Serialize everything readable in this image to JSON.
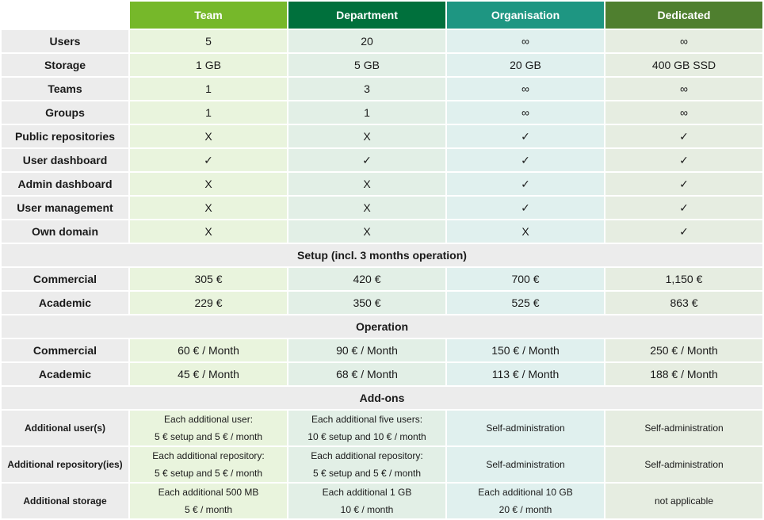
{
  "header": {
    "team": "Team",
    "department": "Department",
    "organisation": "Organisation",
    "dedicated": "Dedicated"
  },
  "features": [
    {
      "label": "Users",
      "team": "5",
      "department": "20",
      "organisation": "∞",
      "dedicated": "∞"
    },
    {
      "label": "Storage",
      "team": "1 GB",
      "department": "5 GB",
      "organisation": "20 GB",
      "dedicated": "400 GB SSD"
    },
    {
      "label": "Teams",
      "team": "1",
      "department": "3",
      "organisation": "∞",
      "dedicated": "∞"
    },
    {
      "label": "Groups",
      "team": "1",
      "department": "1",
      "organisation": "∞",
      "dedicated": "∞"
    },
    {
      "label": "Public repositories",
      "team": "X",
      "department": "X",
      "organisation": "✓",
      "dedicated": "✓"
    },
    {
      "label": "User dashboard",
      "team": "✓",
      "department": "✓",
      "organisation": "✓",
      "dedicated": "✓"
    },
    {
      "label": "Admin dashboard",
      "team": "X",
      "department": "X",
      "organisation": "✓",
      "dedicated": "✓"
    },
    {
      "label": "User management",
      "team": "X",
      "department": "X",
      "organisation": "✓",
      "dedicated": "✓"
    },
    {
      "label": "Own domain",
      "team": "X",
      "department": "X",
      "organisation": "X",
      "dedicated": "✓"
    }
  ],
  "setup": {
    "title": "Setup (incl. 3 months operation)",
    "rows": [
      {
        "label": "Commercial",
        "team": "305 €",
        "department": "420 €",
        "organisation": "700 €",
        "dedicated": "1,150 €"
      },
      {
        "label": "Academic",
        "team": "229 €",
        "department": "350 €",
        "organisation": "525 €",
        "dedicated": "863 €"
      }
    ]
  },
  "operation": {
    "title": "Operation",
    "rows": [
      {
        "label": "Commercial",
        "team": "60 € / Month",
        "department": "90 € / Month",
        "organisation": "150 € / Month",
        "dedicated": "250 € / Month"
      },
      {
        "label": "Academic",
        "team": "45 € / Month",
        "department": "68 € / Month",
        "organisation": "113 € / Month",
        "dedicated": "188 € / Month"
      }
    ]
  },
  "addons": {
    "title": "Add-ons",
    "rows": [
      {
        "label": "Additional user(s)",
        "team": {
          "line1": "Each additional user:",
          "line2": "5 € setup and 5 € / month"
        },
        "department": {
          "line1": "Each additional five users:",
          "line2": "10 € setup and 10 € / month"
        },
        "organisation": "Self-administration",
        "dedicated": "Self-administration"
      },
      {
        "label": "Additional repository(ies)",
        "team": {
          "line1": "Each additional repository:",
          "line2": "5 € setup and 5 € / month"
        },
        "department": {
          "line1": "Each additional repository:",
          "line2": "5 € setup and 5 € / month"
        },
        "organisation": "Self-administration",
        "dedicated": "Self-administration"
      },
      {
        "label": "Additional storage",
        "team": {
          "line1": "Each additional 500 MB",
          "line2": "5 € / month"
        },
        "department": {
          "line1": "Each additional 1 GB",
          "line2": "10 € / month"
        },
        "organisation": {
          "line1": "Each additional 10 GB",
          "line2": "20 € / month"
        },
        "dedicated": "not applicable"
      }
    ]
  },
  "colors": {
    "team": "#76b82a",
    "department": "#00703c",
    "organisation": "#1e9682",
    "dedicated": "#4f7f2f"
  }
}
